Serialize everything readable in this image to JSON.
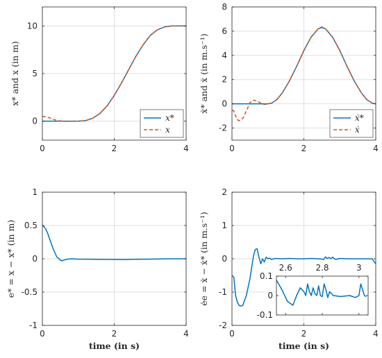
{
  "colors": {
    "reference": "#0072bd",
    "actual": "#d95319",
    "grid": "#dfdfdf",
    "axis": "#262626"
  },
  "chart_data": [
    {
      "type": "line",
      "ylabel": "x* and x (in m)",
      "xlabel": "",
      "xlim": [
        0,
        4
      ],
      "ylim": [
        -2,
        12
      ],
      "xticks": [
        "0",
        "2",
        "4"
      ],
      "yticks": [
        "0",
        "5",
        "10"
      ],
      "grid": true,
      "legend": {
        "position": "bottom-right",
        "entries": [
          "x*",
          "x"
        ]
      },
      "series": [
        {
          "name": "x*",
          "style": "solid",
          "x": [
            0,
            0.5,
            1.0,
            1.2,
            1.4,
            1.6,
            1.8,
            2.0,
            2.2,
            2.4,
            2.6,
            2.8,
            3.0,
            3.2,
            3.4,
            3.6,
            3.8,
            4.0
          ],
          "y": [
            0,
            0,
            0,
            0.05,
            0.3,
            0.8,
            1.6,
            2.7,
            4.0,
            5.4,
            6.8,
            8.0,
            9.0,
            9.6,
            9.9,
            10.0,
            10.0,
            10.0
          ]
        },
        {
          "name": "x",
          "style": "dashed",
          "x": [
            0,
            0.1,
            0.2,
            0.3,
            0.4,
            0.5,
            0.6,
            0.7,
            0.8,
            1.0,
            1.2,
            1.4,
            1.6,
            1.8,
            2.0,
            2.2,
            2.4,
            2.6,
            2.8,
            3.0,
            3.2,
            3.4,
            3.6,
            3.8,
            4.0
          ],
          "y": [
            0.5,
            0.45,
            0.35,
            0.2,
            0.08,
            0.02,
            -0.02,
            -0.03,
            -0.02,
            0,
            0.05,
            0.3,
            0.8,
            1.6,
            2.7,
            4.0,
            5.4,
            6.8,
            8.0,
            9.0,
            9.6,
            9.9,
            10.0,
            10.0,
            10.0
          ]
        }
      ]
    },
    {
      "type": "line",
      "ylabel": "ẋ* and ẋ (in m.s⁻¹)",
      "xlabel": "",
      "xlim": [
        0,
        4
      ],
      "ylim": [
        -3,
        8
      ],
      "xticks": [
        "0",
        "2",
        "4"
      ],
      "yticks": [
        "-2",
        "0",
        "2",
        "4",
        "6",
        "8"
      ],
      "grid": true,
      "legend": {
        "position": "bottom-right",
        "entries": [
          "ẋ*",
          "ẋ"
        ]
      },
      "series": [
        {
          "name": "ẋ*",
          "style": "solid",
          "x": [
            0,
            0.5,
            1.0,
            1.1,
            1.25,
            1.4,
            1.6,
            1.8,
            2.0,
            2.2,
            2.4,
            2.5,
            2.6,
            2.8,
            3.0,
            3.2,
            3.4,
            3.6,
            3.75,
            3.9,
            4.0
          ],
          "y": [
            0,
            0,
            0,
            0.05,
            0.35,
            0.9,
            1.9,
            3.1,
            4.4,
            5.5,
            6.2,
            6.3,
            6.2,
            5.5,
            4.4,
            3.1,
            1.9,
            0.9,
            0.35,
            0.05,
            0
          ]
        },
        {
          "name": "ẋ",
          "style": "dashed",
          "x": [
            0,
            0.05,
            0.1,
            0.15,
            0.2,
            0.3,
            0.4,
            0.5,
            0.6,
            0.7,
            0.8,
            0.9,
            1.0,
            1.1,
            1.25,
            1.4,
            1.6,
            1.8,
            2.0,
            2.2,
            2.4,
            2.5,
            2.6,
            2.8,
            3.0,
            3.2,
            3.4,
            3.6,
            3.75,
            3.9,
            4.0
          ],
          "y": [
            -0.5,
            -0.6,
            -1.0,
            -1.3,
            -1.4,
            -1.2,
            -0.6,
            0.1,
            0.3,
            0.25,
            0.05,
            -0.05,
            0,
            0.05,
            0.35,
            0.9,
            1.9,
            3.1,
            4.4,
            5.5,
            6.2,
            6.35,
            6.2,
            5.5,
            4.4,
            3.1,
            1.9,
            0.9,
            0.35,
            0.05,
            0
          ]
        }
      ]
    },
    {
      "type": "line",
      "ylabel": "e* = x − x* (in m)",
      "xlabel": "time (in s)",
      "xlim": [
        0,
        4
      ],
      "ylim": [
        -1,
        1
      ],
      "xticks": [
        "0",
        "2",
        "4"
      ],
      "yticks": [
        "-1",
        "-0.5",
        "0",
        "0.5",
        "1"
      ],
      "grid": true,
      "series": [
        {
          "name": "",
          "style": "solid",
          "x": [
            0,
            0.05,
            0.1,
            0.15,
            0.2,
            0.3,
            0.4,
            0.5,
            0.55,
            0.6,
            0.7,
            0.8,
            1.0,
            1.5,
            2.0,
            2.3,
            2.5,
            3.0,
            3.5,
            4.0
          ],
          "y": [
            0.5,
            0.48,
            0.44,
            0.38,
            0.3,
            0.15,
            0.03,
            -0.02,
            -0.03,
            -0.02,
            -0.005,
            0,
            -0.005,
            -0.008,
            -0.01,
            -0.012,
            -0.008,
            -0.005,
            0,
            0
          ]
        }
      ]
    },
    {
      "type": "line",
      "ylabel": "ėe = ẋ − ẋ* (in m.s⁻¹)",
      "xlabel": "time (in s)",
      "xlim": [
        0,
        4
      ],
      "ylim": [
        -2,
        2
      ],
      "xticks": [
        "0",
        "2",
        "4"
      ],
      "yticks": [
        "-2",
        "-1",
        "0",
        "1",
        "2"
      ],
      "grid": true,
      "series": [
        {
          "name": "",
          "style": "solid",
          "x": [
            0,
            0.05,
            0.1,
            0.15,
            0.2,
            0.25,
            0.3,
            0.4,
            0.5,
            0.6,
            0.65,
            0.7,
            0.75,
            0.8,
            0.85,
            0.9,
            0.95,
            1.0,
            1.05,
            1.1,
            1.2,
            1.4,
            1.6,
            1.8,
            2.0,
            2.2,
            2.4,
            2.5,
            2.55,
            2.6,
            2.65,
            2.7,
            2.75,
            2.8,
            2.85,
            2.9,
            2.95,
            3.0,
            3.2,
            3.4,
            3.6,
            3.8,
            3.9,
            4.0
          ],
          "y": [
            -0.5,
            -0.55,
            -1.1,
            -1.3,
            -1.4,
            -1.42,
            -1.4,
            -1.1,
            -0.6,
            0.1,
            0.28,
            0.3,
            0.05,
            -0.15,
            0.0,
            -0.1,
            0.05,
            0.0,
            0.02,
            -0.02,
            0.01,
            0.0,
            0.01,
            0.0,
            0.0,
            0.01,
            0.0,
            -0.01,
            -0.02,
            0.06,
            0.01,
            0.04,
            0.0,
            0.05,
            0.0,
            -0.02,
            0.0,
            0.01,
            0.0,
            0.0,
            0.0,
            0.0,
            0.0,
            -0.15
          ]
        }
      ]
    },
    {
      "type": "line",
      "ylabel": "",
      "xlabel": "",
      "xlim": [
        2.55,
        3.05
      ],
      "ylim": [
        -0.1,
        0.1
      ],
      "xticks": [
        "2.6",
        "2.8",
        "3"
      ],
      "yticks": [
        "-0.1",
        "0",
        "0.1"
      ],
      "grid": false,
      "series": [
        {
          "name": "",
          "style": "solid",
          "x": [
            2.55,
            2.58,
            2.61,
            2.64,
            2.66,
            2.68,
            2.7,
            2.71,
            2.72,
            2.73,
            2.74,
            2.75,
            2.76,
            2.77,
            2.78,
            2.79,
            2.8,
            2.81,
            2.82,
            2.83,
            2.84,
            2.86,
            2.9,
            2.95,
            2.98,
            3.0,
            3.01,
            3.02,
            3.03,
            3.04
          ],
          "y": [
            0.08,
            0.03,
            -0.03,
            -0.05,
            0.0,
            0.04,
            0.02,
            0.0,
            0.06,
            0.02,
            0.0,
            0.04,
            0.01,
            0.0,
            0.05,
            0.0,
            -0.005,
            0.06,
            0.03,
            -0.01,
            0.02,
            0.0,
            -0.005,
            0.0,
            -0.01,
            0.0,
            0.06,
            0.03,
            0.0,
            -0.005
          ]
        }
      ]
    }
  ]
}
